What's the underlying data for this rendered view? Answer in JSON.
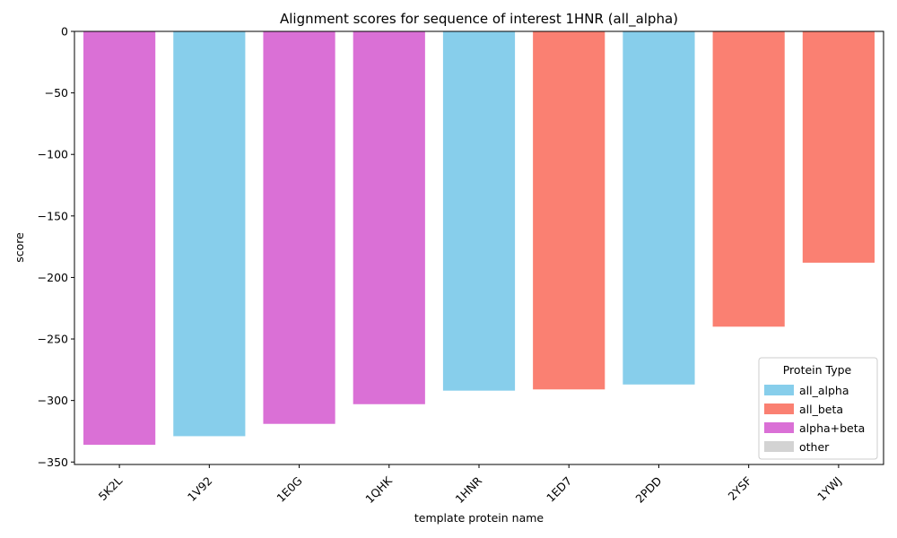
{
  "chart_data": {
    "type": "bar",
    "title": "Alignment scores for sequence of interest 1HNR (all_alpha)",
    "xlabel": "template protein name",
    "ylabel": "score",
    "ylim": [
      -352,
      0
    ],
    "yticks": [
      0,
      -50,
      -100,
      -150,
      -200,
      -250,
      -300,
      -350
    ],
    "ytick_labels": [
      "0",
      "−50",
      "−100",
      "−150",
      "−200",
      "−250",
      "−300",
      "−350"
    ],
    "categories": [
      "5K2L",
      "1V92",
      "1E0G",
      "1QHK",
      "1HNR",
      "1ED7",
      "2PDD",
      "2YSF",
      "1YWJ"
    ],
    "values": [
      -336,
      -329,
      -319,
      -303,
      -292,
      -291,
      -287,
      -240,
      -188
    ],
    "protein_types": [
      "alpha+beta",
      "all_alpha",
      "alpha+beta",
      "alpha+beta",
      "all_alpha",
      "all_beta",
      "all_alpha",
      "all_beta",
      "all_beta"
    ],
    "grid": false,
    "legend": {
      "title": "Protein Type",
      "placement": "lower-right",
      "entries": [
        {
          "label": "all_alpha",
          "color": "#87ceeb"
        },
        {
          "label": "all_beta",
          "color": "#fa8072"
        },
        {
          "label": "alpha+beta",
          "color": "#da70d6"
        },
        {
          "label": "other",
          "color": "#d3d3d3"
        }
      ]
    }
  }
}
